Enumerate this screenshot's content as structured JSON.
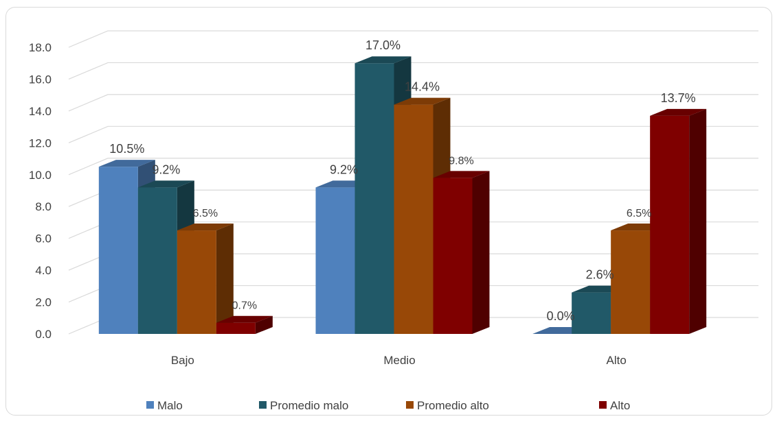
{
  "chart_data": {
    "type": "bar",
    "title": "",
    "xlabel": "",
    "ylabel": "",
    "ylim": [
      0,
      18
    ],
    "yticks": [
      "0.0",
      "2.0",
      "4.0",
      "6.0",
      "8.0",
      "10.0",
      "12.0",
      "14.0",
      "16.0",
      "18.0"
    ],
    "grid": true,
    "legend_position": "bottom",
    "categories": [
      "Bajo",
      "Medio",
      "Alto"
    ],
    "series": [
      {
        "name": "Malo",
        "color": "#4f81bd",
        "values": [
          10.5,
          9.2,
          0.0
        ],
        "labels": [
          "10.5%",
          "9.2%",
          "0.0%"
        ]
      },
      {
        "name": "Promedio malo",
        "color": "#215968",
        "values": [
          9.2,
          17.0,
          2.6
        ],
        "labels": [
          "9.2%",
          "17.0%",
          "2.6%"
        ]
      },
      {
        "name": "Promedio alto",
        "color": "#984807",
        "values": [
          6.5,
          14.4,
          6.5
        ],
        "labels": [
          "6.5%",
          "14.4%",
          "6.5%"
        ]
      },
      {
        "name": "Alto",
        "color": "#7f0000",
        "values": [
          0.7,
          9.8,
          13.7
        ],
        "labels": [
          "0.7%",
          "9.8%",
          "13.7%"
        ]
      }
    ]
  }
}
